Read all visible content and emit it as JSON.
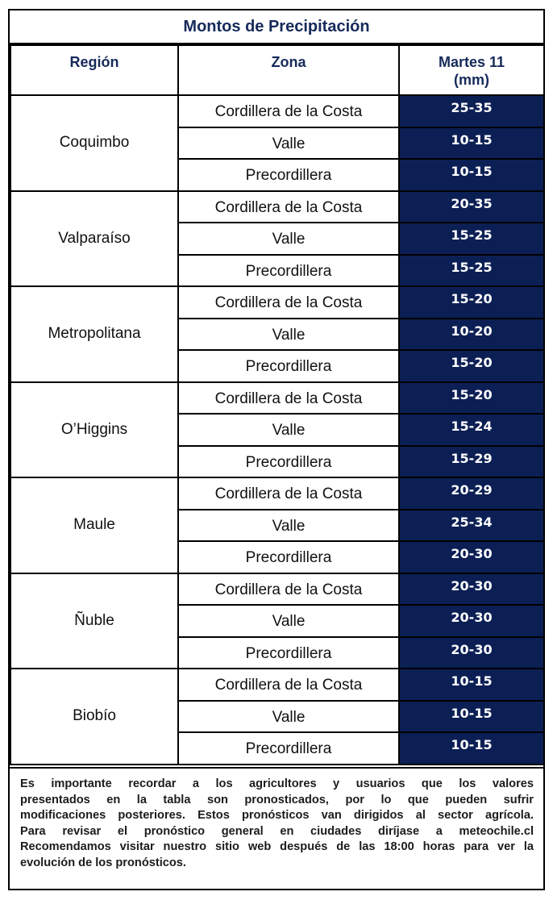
{
  "title": "Montos de Precipitación",
  "headers": {
    "region": "Región",
    "zona": "Zona",
    "valor_line1": "Martes 11",
    "valor_line2": "(mm)"
  },
  "rows": [
    {
      "region": "Coquimbo",
      "zonas": [
        {
          "zona": "Cordillera de la Costa",
          "valor": "25-35"
        },
        {
          "zona": "Valle",
          "valor": "10-15"
        },
        {
          "zona": "Precordillera",
          "valor": "10-15"
        }
      ]
    },
    {
      "region": "Valparaíso",
      "zonas": [
        {
          "zona": "Cordillera de la Costa",
          "valor": "20-35"
        },
        {
          "zona": "Valle",
          "valor": "15-25"
        },
        {
          "zona": "Precordillera",
          "valor": "15-25"
        }
      ]
    },
    {
      "region": "Metropolitana",
      "zonas": [
        {
          "zona": "Cordillera de la Costa",
          "valor": "15-20"
        },
        {
          "zona": "Valle",
          "valor": "10-20"
        },
        {
          "zona": "Precordillera",
          "valor": "15-20"
        }
      ]
    },
    {
      "region": "O’Higgins",
      "zonas": [
        {
          "zona": "Cordillera de la Costa",
          "valor": "15-20"
        },
        {
          "zona": "Valle",
          "valor": "15-24"
        },
        {
          "zona": "Precordillera",
          "valor": "15-29"
        }
      ]
    },
    {
      "region": "Maule",
      "zonas": [
        {
          "zona": "Cordillera de la Costa",
          "valor": "20-29"
        },
        {
          "zona": "Valle",
          "valor": "25-34"
        },
        {
          "zona": "Precordillera",
          "valor": "20-30"
        }
      ]
    },
    {
      "region": "Ñuble",
      "zonas": [
        {
          "zona": "Cordillera de la Costa",
          "valor": "20-30"
        },
        {
          "zona": "Valle",
          "valor": "20-30"
        },
        {
          "zona": "Precordillera",
          "valor": "20-30"
        }
      ]
    },
    {
      "region": "Biobío",
      "zonas": [
        {
          "zona": "Cordillera de la Costa",
          "valor": "10-15"
        },
        {
          "zona": "Valle",
          "valor": "10-15"
        },
        {
          "zona": "Precordillera",
          "valor": "10-15"
        }
      ]
    }
  ],
  "note_lines": [
    "Es importante recordar a los agricultores y usuarios que los valores",
    "presentados en la tabla son pronosticados, por lo que pueden sufrir",
    "modificaciones posteriores. Estos pronósticos van dirigidos al sector agrícola.",
    "Para revisar el pronóstico general en ciudades diríjase a meteochile.cl",
    "Recomendamos visitar nuestro sitio web después de las 18:00 horas para ver la",
    "evolución de los pronósticos."
  ],
  "colors": {
    "value_cell_bg": "#0c1f55",
    "header_text": "#162a5a"
  }
}
